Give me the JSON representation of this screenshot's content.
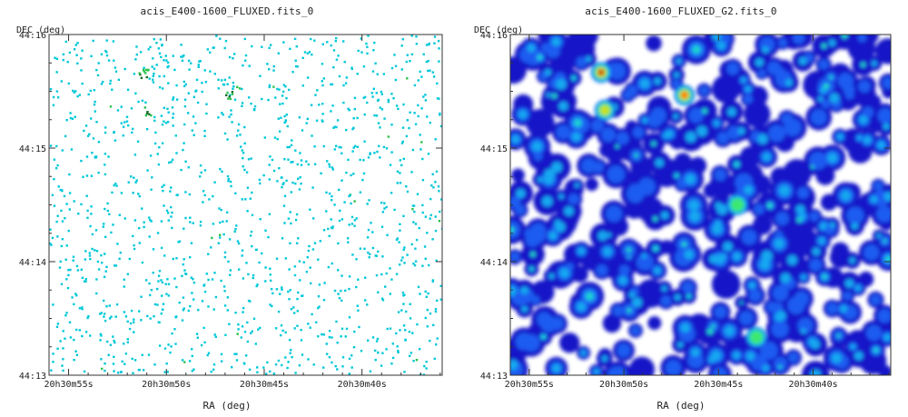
{
  "chart_data": [
    {
      "type": "heatmap",
      "title": "acis_E400-1600_FLUXED.fits_0",
      "xlabel": "RA (deg)",
      "ylabel": "DEC (deg)",
      "x_ticks": [
        "20h30m55s",
        "20h30m50s",
        "20h30m45s",
        "20h30m40s"
      ],
      "y_ticks": [
        "44:16",
        "44:15",
        "44:14",
        "44:13"
      ],
      "description_style": "sparse",
      "colormap": [
        "#00c8d8",
        "#18d8c8",
        "#2cc24a",
        "#1a6e2a"
      ],
      "bright_sources": [
        {
          "ra": "20h30m51.2s",
          "dec": "44:15:40",
          "intensity": 1.0
        },
        {
          "ra": "20h30m46.8s",
          "dec": "44:15:28",
          "intensity": 0.7
        },
        {
          "ra": "20h30m51.0s",
          "dec": "44:15:20",
          "intensity": 0.55
        }
      ]
    },
    {
      "type": "heatmap",
      "title": "acis_E400-1600_FLUXED_G2.fits_0",
      "xlabel": "RA (deg)",
      "ylabel": "DEC (deg)",
      "x_ticks": [
        "20h30m55s",
        "20h30m50s",
        "20h30m45s",
        "20h30m40s"
      ],
      "y_ticks": [
        "44:16",
        "44:15",
        "44:14",
        "44:13"
      ],
      "description_style": "smoothed",
      "colormap": [
        "#1414c8",
        "#1a5cf0",
        "#18a8f0",
        "#20d8c8",
        "#3ce870",
        "#c8e020",
        "#ff7a00",
        "#a01010"
      ],
      "bright_sources": [
        {
          "ra": "20h30m51.2s",
          "dec": "44:15:40",
          "intensity": 1.0
        },
        {
          "ra": "20h30m46.8s",
          "dec": "44:15:28",
          "intensity": 0.7
        },
        {
          "ra": "20h30m51.0s",
          "dec": "44:15:20",
          "intensity": 0.55
        },
        {
          "ra": "20h30m43.0s",
          "dec": "44:13:20",
          "intensity": 0.4
        },
        {
          "ra": "20h30m44.0s",
          "dec": "44:14:30",
          "intensity": 0.35
        }
      ]
    }
  ]
}
